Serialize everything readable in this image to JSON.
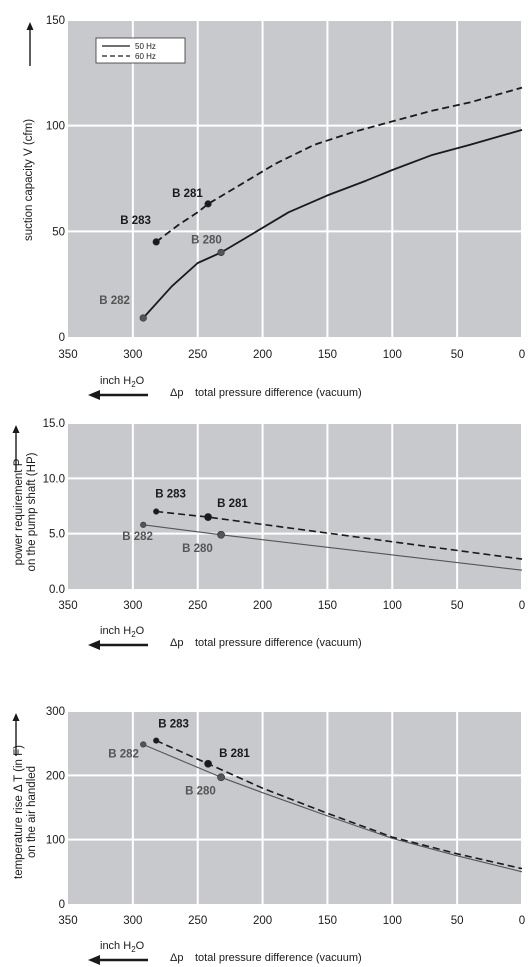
{
  "colors": {
    "plot_bg": "#c8c9cc",
    "grid": "#ffffff",
    "line_dark": "#1a1a1a",
    "line_gray": "#555555",
    "label_gray": "#555555"
  },
  "x_axis_caption": {
    "unit_prefix": "inch H",
    "unit_sub": "2",
    "unit_suffix": "O",
    "symbol": "Δp",
    "label": "total pressure difference (vacuum)"
  },
  "chart_data": [
    {
      "type": "line",
      "ylabel": "suction capacity V (cfm)",
      "xlim": [
        350,
        0
      ],
      "ylim": [
        0,
        150
      ],
      "xticks": [
        350,
        300,
        250,
        200,
        150,
        100,
        50,
        0
      ],
      "xtick_labels": [
        "350",
        "300",
        "250",
        "200",
        "150",
        "100",
        "50",
        "0"
      ],
      "yticks": [
        0,
        50,
        100,
        150
      ],
      "ytick_labels": [
        "0",
        "50",
        "100",
        "150"
      ],
      "grid": true,
      "legend": {
        "position": "top-left",
        "entries": [
          {
            "name": "50 Hz",
            "style": "solid"
          },
          {
            "name": "60 Hz",
            "style": "dashed"
          }
        ]
      },
      "series": [
        {
          "name": "50 Hz",
          "style": "solid",
          "width": 1.8,
          "color": "#1a1a1a",
          "x": [
            292,
            270,
            250,
            232,
            210,
            180,
            150,
            120,
            100,
            70,
            40,
            0
          ],
          "y": [
            9,
            24,
            35,
            40,
            48,
            59,
            67,
            74,
            79,
            86,
            91,
            98
          ]
        },
        {
          "name": "60 Hz",
          "style": "dashed",
          "width": 1.8,
          "color": "#1a1a1a",
          "x": [
            282,
            265,
            250,
            242,
            220,
            190,
            160,
            130,
            100,
            70,
            40,
            0
          ],
          "y": [
            45,
            53,
            59,
            63,
            71,
            82,
            91,
            97,
            102,
            107,
            111,
            118
          ]
        }
      ],
      "points": [
        {
          "label": "B 282",
          "x": 292,
          "y": 9,
          "color": "#555555"
        },
        {
          "label": "B 280",
          "x": 232,
          "y": 40,
          "color": "#555555"
        },
        {
          "label": "B 283",
          "x": 282,
          "y": 45,
          "color": "#1a1a1a"
        },
        {
          "label": "B 281",
          "x": 242,
          "y": 63,
          "color": "#1a1a1a"
        }
      ]
    },
    {
      "type": "line",
      "ylabel": [
        "power requirement P",
        "on the pump shaft (HP)"
      ],
      "xlim": [
        350,
        0
      ],
      "ylim": [
        0,
        15
      ],
      "xticks": [
        350,
        300,
        250,
        200,
        150,
        100,
        50,
        0
      ],
      "xtick_labels": [
        "350",
        "300",
        "250",
        "200",
        "150",
        "100",
        "50",
        "0"
      ],
      "yticks": [
        0,
        5,
        10,
        15
      ],
      "ytick_labels": [
        "0.0",
        "5.0",
        "10.0",
        "15.0"
      ],
      "grid": true,
      "series": [
        {
          "name": "50 Hz",
          "style": "solid",
          "width": 1.1,
          "color": "#555555",
          "x": [
            292,
            232,
            0
          ],
          "y": [
            5.8,
            4.9,
            1.7
          ]
        },
        {
          "name": "60 Hz",
          "style": "dashed",
          "width": 1.6,
          "color": "#1a1a1a",
          "x": [
            282,
            242,
            0
          ],
          "y": [
            7.0,
            6.5,
            2.7
          ]
        }
      ],
      "points": [
        {
          "label": "B 282",
          "x": 292,
          "y": 5.8,
          "color": "#555555"
        },
        {
          "label": "B 280",
          "x": 232,
          "y": 4.9,
          "color": "#555555"
        },
        {
          "label": "B 283",
          "x": 282,
          "y": 7.0,
          "color": "#1a1a1a"
        },
        {
          "label": "B 281",
          "x": 242,
          "y": 6.5,
          "color": "#1a1a1a"
        }
      ]
    },
    {
      "type": "line",
      "ylabel": [
        "temperature rise Δ T  (in F)",
        "on the air handled"
      ],
      "xlim": [
        350,
        0
      ],
      "ylim": [
        0,
        300
      ],
      "xticks": [
        350,
        300,
        250,
        200,
        150,
        100,
        50,
        0
      ],
      "xtick_labels": [
        "350",
        "300",
        "250",
        "200",
        "150",
        "100",
        "50",
        "0"
      ],
      "yticks": [
        0,
        100,
        200,
        300
      ],
      "ytick_labels": [
        "0",
        "100",
        "200",
        "300"
      ],
      "grid": true,
      "series": [
        {
          "name": "50 Hz",
          "style": "solid",
          "width": 1.1,
          "color": "#555555",
          "x": [
            292,
            232,
            200,
            150,
            100,
            50,
            0
          ],
          "y": [
            248,
            197,
            173,
            137,
            102,
            75,
            50
          ]
        },
        {
          "name": "60 Hz",
          "style": "dashed",
          "width": 1.6,
          "color": "#1a1a1a",
          "x": [
            282,
            242,
            200,
            150,
            100,
            50,
            0
          ],
          "y": [
            254,
            218,
            180,
            141,
            104,
            78,
            55
          ]
        }
      ],
      "points": [
        {
          "label": "B 282",
          "x": 292,
          "y": 248,
          "color": "#555555"
        },
        {
          "label": "B 280",
          "x": 232,
          "y": 197,
          "color": "#555555"
        },
        {
          "label": "B 283",
          "x": 282,
          "y": 254,
          "color": "#1a1a1a"
        },
        {
          "label": "B 281",
          "x": 242,
          "y": 218,
          "color": "#1a1a1a"
        }
      ]
    }
  ]
}
